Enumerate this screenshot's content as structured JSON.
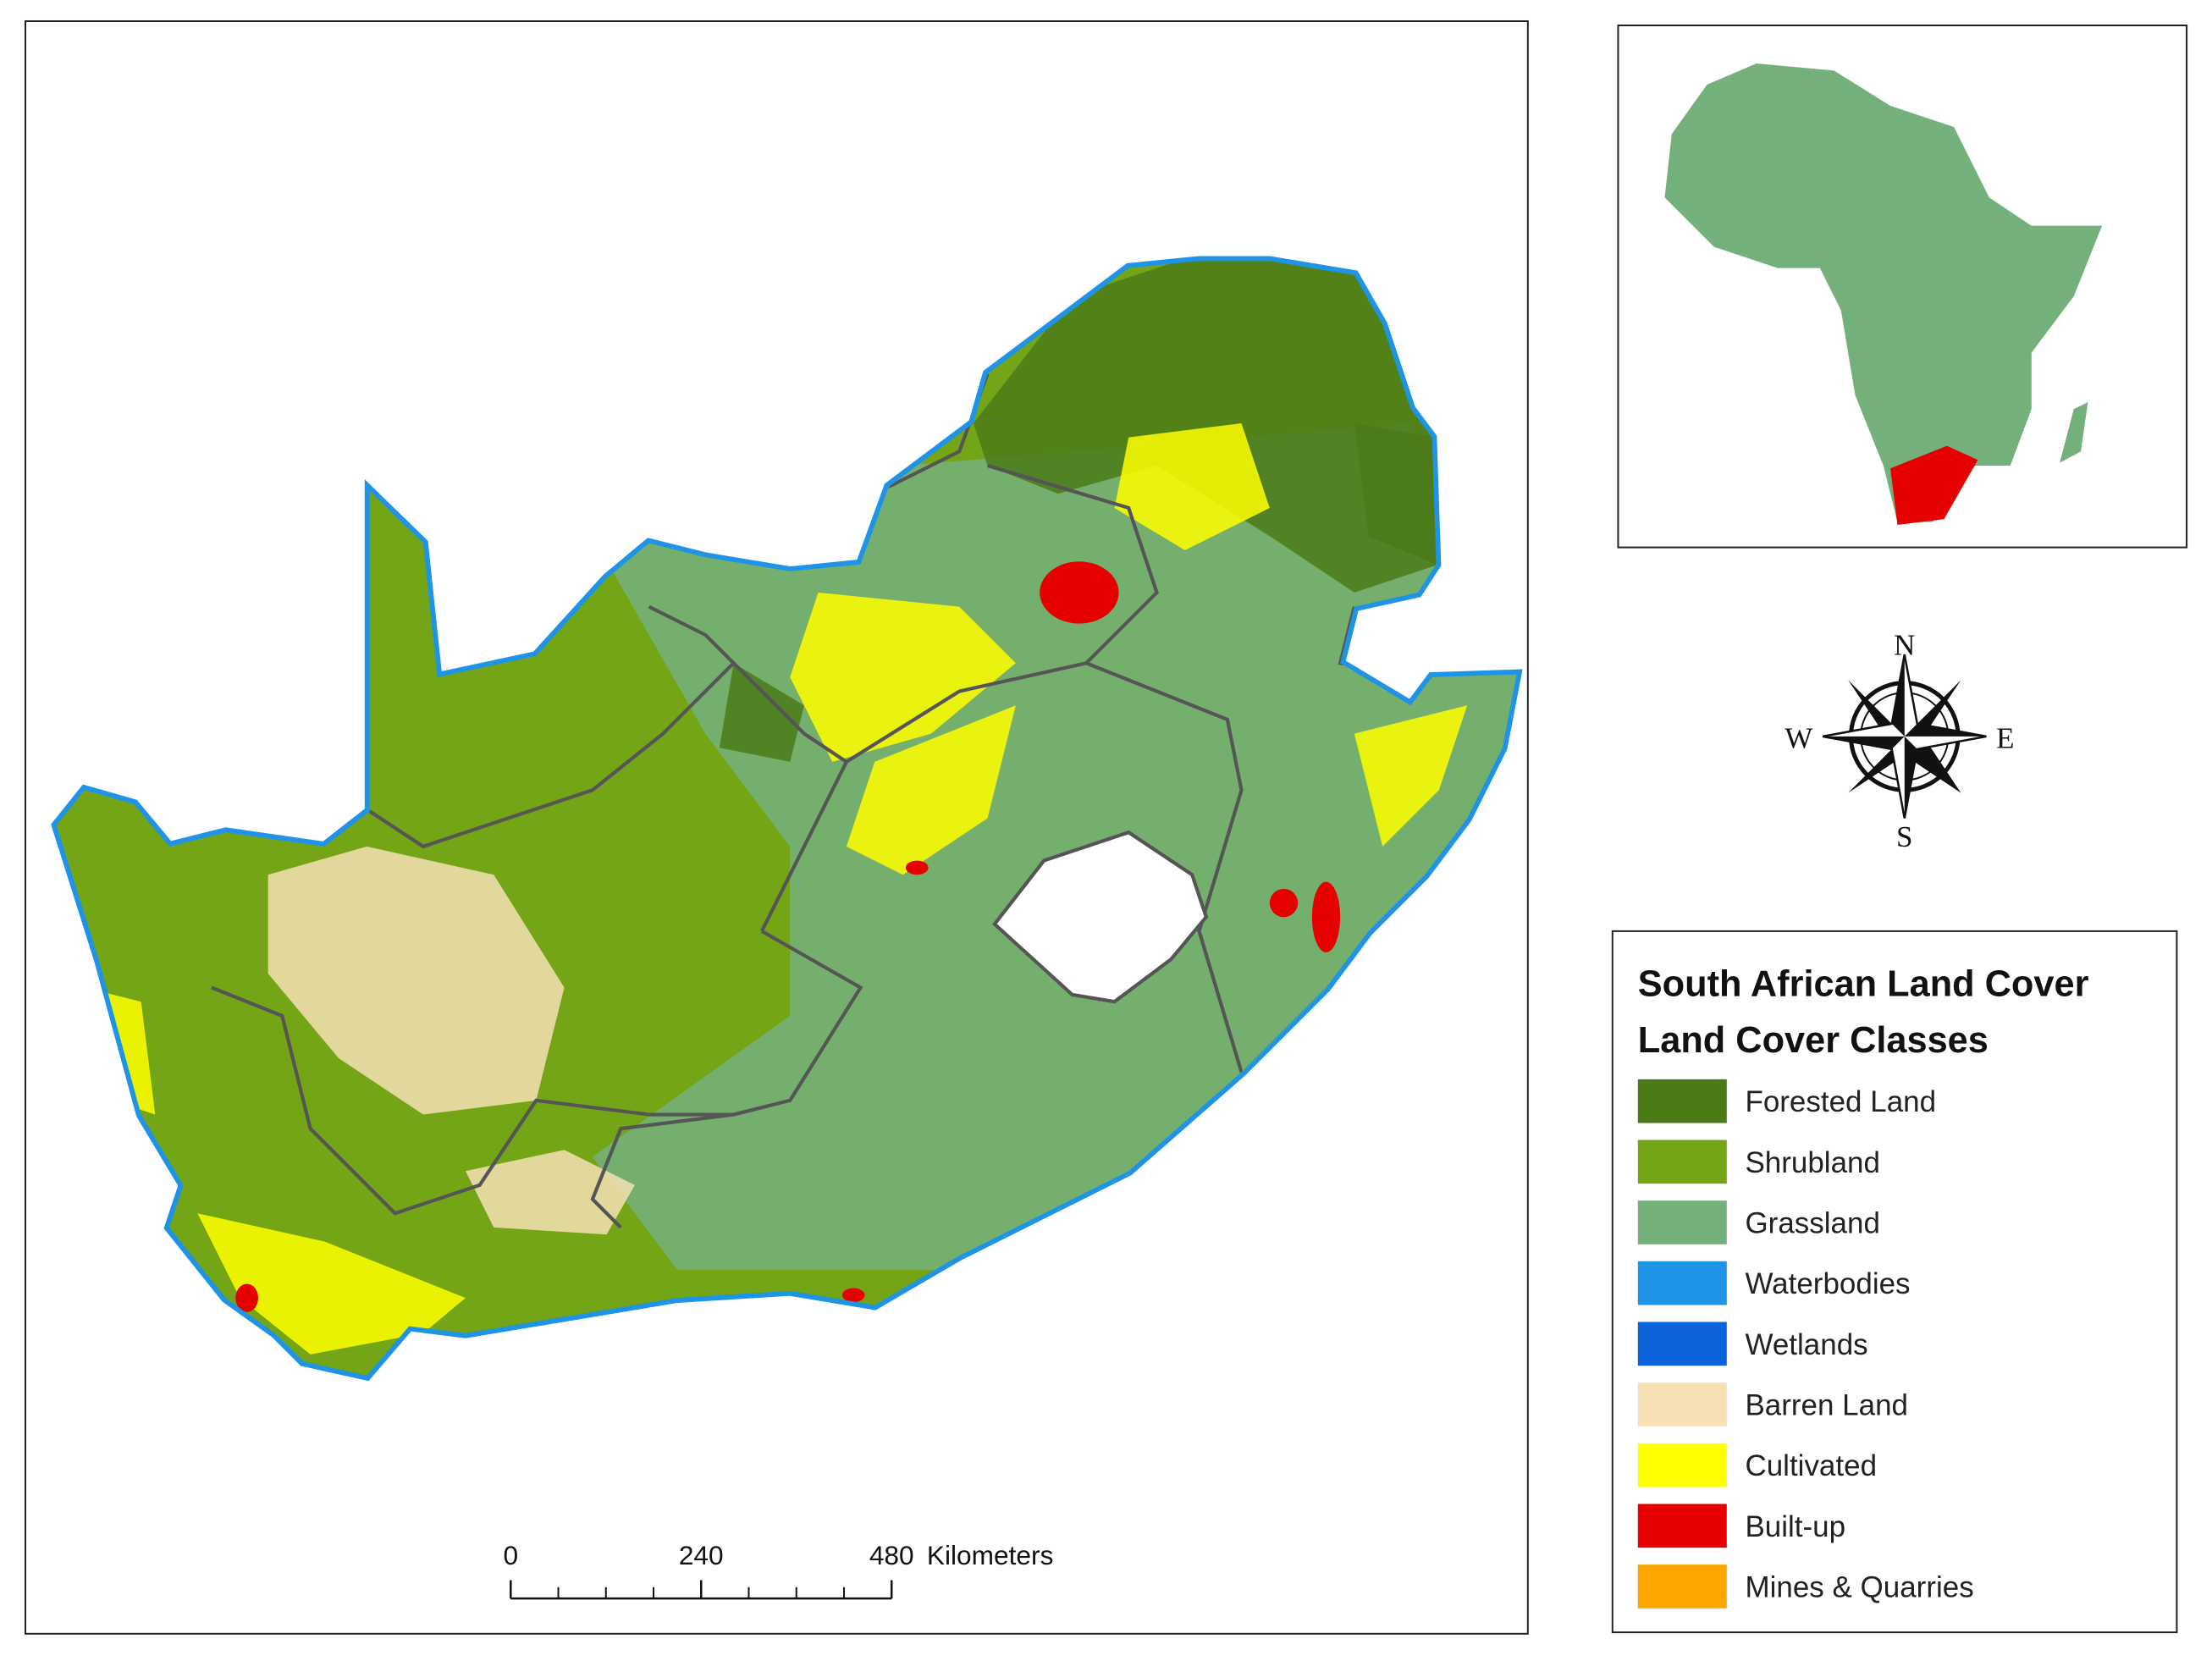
{
  "map": {
    "legend": {
      "title": "South African Land Cover",
      "subtitle": "Land Cover Classes",
      "classes": [
        {
          "name": "Forested Land",
          "color": "#4b7a17"
        },
        {
          "name": "Shrubland",
          "color": "#73a516"
        },
        {
          "name": "Grassland",
          "color": "#74b07c"
        },
        {
          "name": "Waterbodies",
          "color": "#1f93e6"
        },
        {
          "name": "Wetlands",
          "color": "#0b63dc"
        },
        {
          "name": "Barren Land",
          "color": "#f6e0b4"
        },
        {
          "name": "Cultivated",
          "color": "#ffff00"
        },
        {
          "name": "Built-up",
          "color": "#e60000"
        },
        {
          "name": "Mines & Quarries",
          "color": "#ffa500"
        }
      ]
    },
    "scale_bar": {
      "ticks": [
        0,
        240,
        480
      ],
      "unit": "Kilometers"
    },
    "compass": {
      "north": "N",
      "south": "S",
      "east": "E",
      "west": "W"
    }
  }
}
